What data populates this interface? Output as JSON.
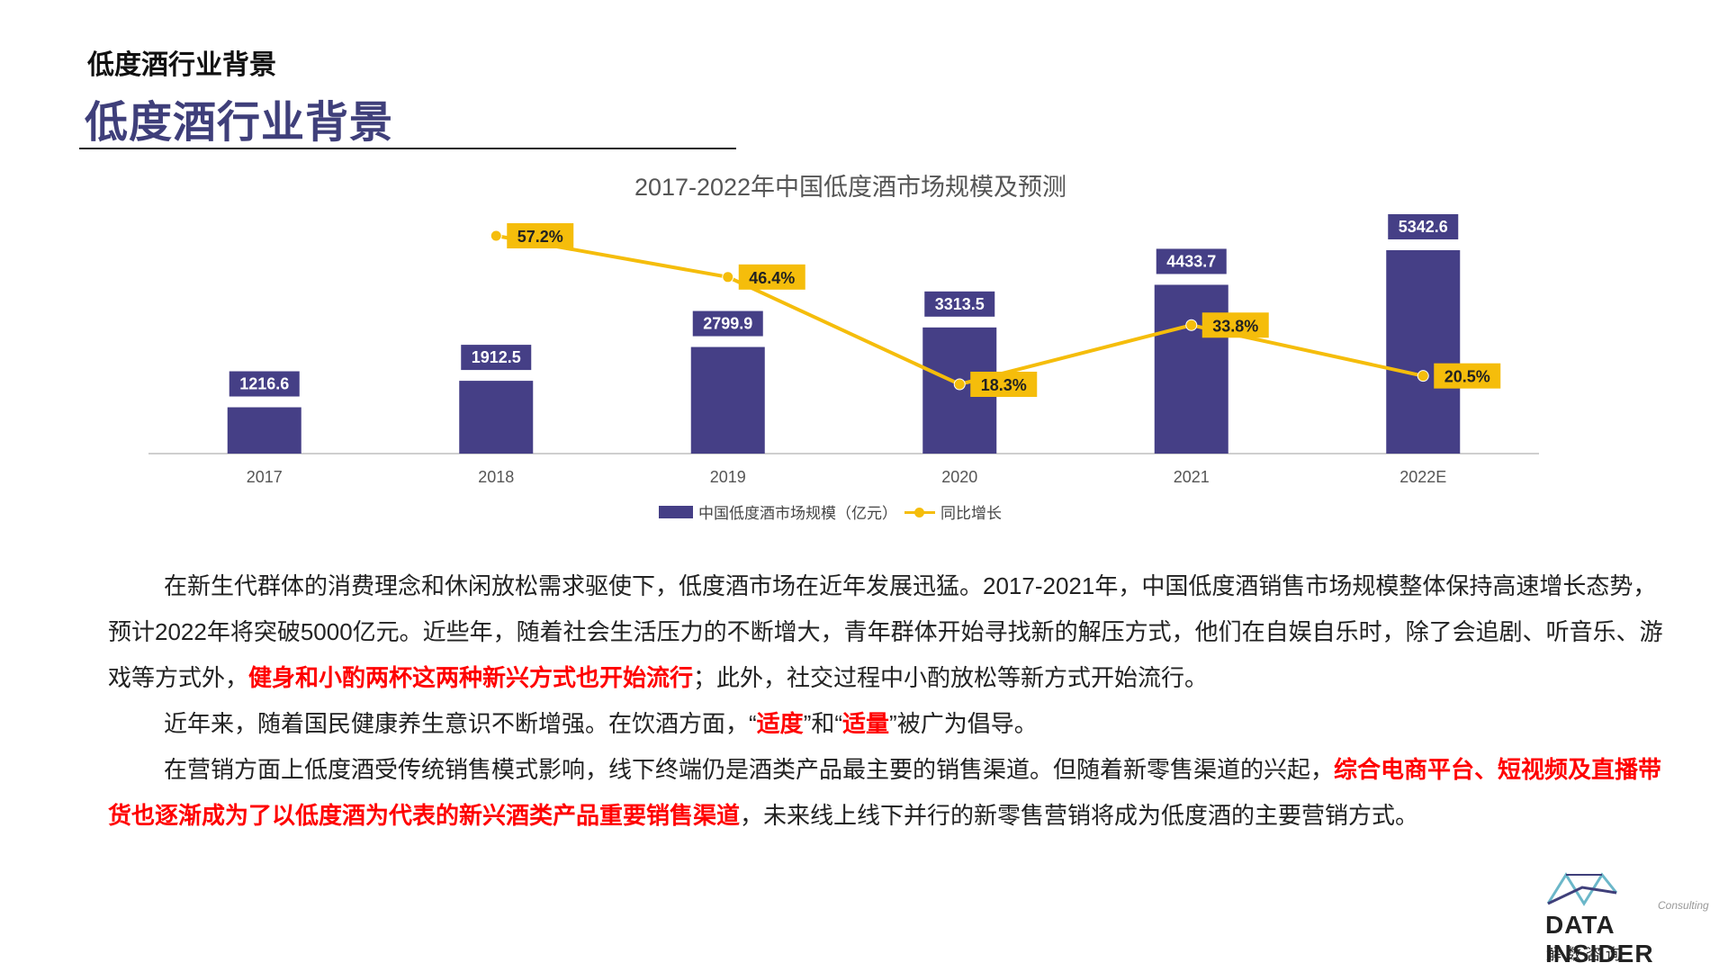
{
  "header": {
    "small_title": "低度酒行业背景",
    "big_title": "低度酒行业背景"
  },
  "chart_data": {
    "type": "bar",
    "title": "2017-2022年中国低度酒市场规模及预测",
    "categories": [
      "2017",
      "2018",
      "2019",
      "2020",
      "2021",
      "2022E"
    ],
    "series": [
      {
        "name": "中国低度酒市场规模（亿元）",
        "kind": "bar",
        "color": "#453f86",
        "values": [
          1216.6,
          1912.5,
          2799.9,
          3313.5,
          4433.7,
          5342.6
        ],
        "labels": [
          "1216.6",
          "1912.5",
          "2799.9",
          "3313.5",
          "4433.7",
          "5342.6"
        ]
      },
      {
        "name": "同比增长",
        "kind": "line",
        "color": "#f5bd0b",
        "values": [
          null,
          57.2,
          46.4,
          18.3,
          33.8,
          20.5
        ],
        "labels": [
          "",
          "57.2%",
          "46.4%",
          "18.3%",
          "33.8%",
          "20.5%"
        ]
      }
    ],
    "legend": [
      "中国低度酒市场规模（亿元）",
      "同比增长"
    ],
    "legend_position": "bottom",
    "grid": false,
    "xlabel": "",
    "ylabel": ""
  },
  "paragraphs": {
    "p1_a": "在新生代群体的消费理念和休闲放松需求驱使下，低度酒市场在近年发展迅猛。2017-2021年，中国低度酒销售市场规模整体保持高速增长态势，预计2022年将突破5000亿元。近些年，随着社会生活压力的不断增大，青年群体开始寻找新的解压方式，他们在自娱自乐时，除了会追剧、听音乐、游戏等方式外，",
    "p1_hl": "健身和小酌两杯这两种新兴方式也开始流行",
    "p1_b": "；此外，社交过程中小酌放松等新方式开始流行。",
    "p2_a": "近年来，随着国民健康养生意识不断增强。在饮酒方面，“",
    "p2_hl1": "适度",
    "p2_b": "”和“",
    "p2_hl2": "适量",
    "p2_c": "”被广为倡导。",
    "p3_a": "在营销方面上低度酒受传统销售模式影响，线下终端仍是酒类产品最主要的销售渠道。但随着新零售渠道的兴起，",
    "p3_hl": "综合电商平台、短视频及直播带货也逐渐成为了以低度酒为代表的新兴酒类产品重要销售渠道",
    "p3_b": "，未来线上线下并行的新零售营销将成为低度酒的主要营销方式。"
  },
  "logo": {
    "consult": "Consulting",
    "name": "DATA INSIDER",
    "cn": "解数咨询",
    "icon": "data-insider-logo-icon"
  }
}
